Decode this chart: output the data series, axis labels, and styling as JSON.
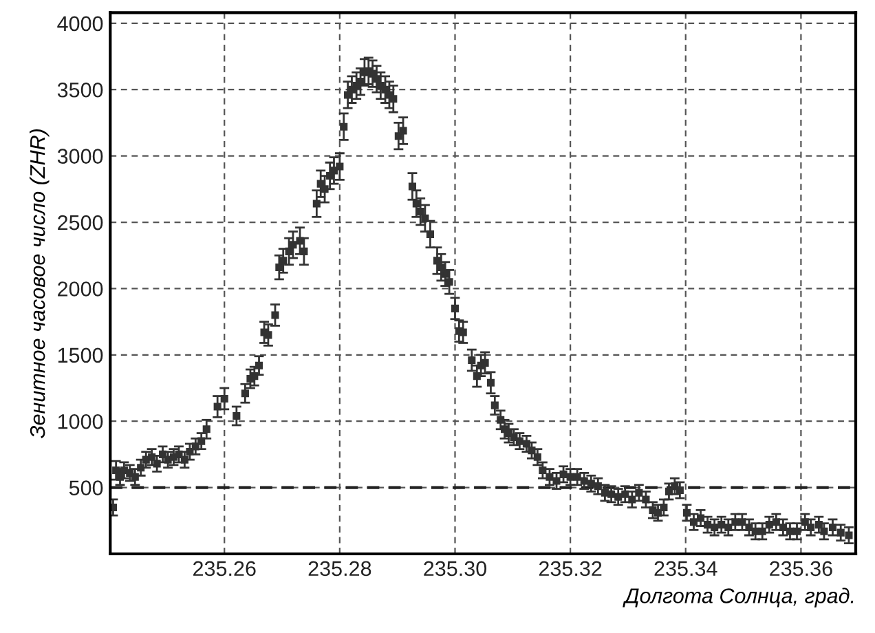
{
  "chart_data": {
    "type": "scatter",
    "xlabel": "Долгота Солнца, град.",
    "ylabel": "Зенитное часовое число (ZHR)",
    "xlim": [
      235.2402,
      235.3695
    ],
    "ylim": [
      0,
      4080
    ],
    "xticks": [
      {
        "value": 235.26,
        "label": "235.26"
      },
      {
        "value": 235.28,
        "label": "235.28"
      },
      {
        "value": 235.3,
        "label": "235.30"
      },
      {
        "value": 235.32,
        "label": "235.32"
      },
      {
        "value": 235.34,
        "label": "235.34"
      },
      {
        "value": 235.36,
        "label": "235.36"
      }
    ],
    "yticks": [
      500,
      1000,
      1500,
      2000,
      2500,
      3000,
      3500,
      4000
    ],
    "grid": true,
    "marker": "square",
    "ref_lines": [
      {
        "axis": "y",
        "value": 500,
        "color": "#222222",
        "line_style": "dashed"
      }
    ],
    "series": [
      {
        "color": "#333333",
        "x": [
          235.2407,
          235.2412,
          235.2419,
          235.2426,
          235.2436,
          235.2445,
          235.2455,
          235.2464,
          235.2474,
          235.2483,
          235.2493,
          235.2502,
          235.2512,
          235.2521,
          235.2531,
          235.254,
          235.255,
          235.256,
          235.2569,
          235.2588,
          235.26,
          235.2621,
          235.2636,
          235.2645,
          235.2652,
          235.266,
          235.2669,
          235.2676,
          235.2688,
          235.2695,
          235.2702,
          235.2712,
          235.2719,
          235.2731,
          235.2738,
          235.276,
          235.2767,
          235.2774,
          235.2783,
          235.279,
          235.28,
          235.2807,
          235.2814,
          235.2821,
          235.2829,
          235.2836,
          235.2843,
          235.285,
          235.2857,
          235.2864,
          235.2871,
          235.2879,
          235.2886,
          235.2893,
          235.2902,
          235.291,
          235.2926,
          235.2933,
          235.294,
          235.2948,
          235.2957,
          235.2969,
          235.2976,
          235.2983,
          235.299,
          235.3,
          235.3007,
          235.3014,
          235.3029,
          235.3038,
          235.3045,
          235.3052,
          235.3062,
          235.3069,
          235.3079,
          235.3086,
          235.3093,
          235.3102,
          235.3112,
          235.3124,
          235.3133,
          235.3143,
          235.3152,
          235.3164,
          235.3176,
          235.3188,
          235.32,
          235.3212,
          235.3224,
          235.3236,
          235.3248,
          235.326,
          235.3271,
          235.3283,
          235.3295,
          235.3307,
          235.3319,
          235.3331,
          235.3343,
          235.3352,
          235.3362,
          235.3371,
          235.3381,
          235.339,
          235.3402,
          235.3414,
          235.3426,
          235.3438,
          235.345,
          235.3462,
          235.3474,
          235.3486,
          235.3498,
          235.351,
          235.3521,
          235.3533,
          235.3545,
          235.3557,
          235.3569,
          235.3581,
          235.3593,
          235.3607,
          235.3617,
          235.3631,
          235.364,
          235.3655,
          235.3669,
          235.3683
        ],
        "values": [
          350,
          630,
          580,
          630,
          610,
          580,
          650,
          710,
          730,
          680,
          750,
          710,
          730,
          750,
          710,
          770,
          810,
          850,
          940,
          1110,
          1170,
          1040,
          1210,
          1320,
          1340,
          1420,
          1670,
          1650,
          1800,
          2160,
          2210,
          2280,
          2330,
          2360,
          2280,
          2640,
          2790,
          2750,
          2850,
          2890,
          2920,
          3220,
          3460,
          3500,
          3530,
          3560,
          3630,
          3640,
          3620,
          3580,
          3530,
          3500,
          3460,
          3430,
          3150,
          3190,
          2770,
          2640,
          2580,
          2530,
          2410,
          2210,
          2160,
          2110,
          2050,
          1850,
          1680,
          1670,
          1460,
          1340,
          1420,
          1440,
          1290,
          1120,
          1010,
          940,
          910,
          880,
          850,
          830,
          780,
          730,
          630,
          580,
          550,
          600,
          580,
          580,
          550,
          530,
          510,
          460,
          450,
          430,
          450,
          410,
          460,
          410,
          330,
          310,
          350,
          470,
          510,
          480,
          310,
          240,
          270,
          220,
          200,
          220,
          200,
          240,
          240,
          200,
          170,
          170,
          220,
          240,
          200,
          170,
          170,
          240,
          200,
          220,
          170,
          200,
          160,
          140
        ],
        "errors": [
          60,
          70,
          60,
          60,
          60,
          60,
          60,
          60,
          60,
          60,
          60,
          60,
          60,
          60,
          60,
          60,
          60,
          60,
          70,
          80,
          80,
          70,
          70,
          70,
          70,
          70,
          80,
          80,
          80,
          90,
          90,
          100,
          100,
          100,
          100,
          100,
          100,
          100,
          100,
          100,
          100,
          100,
          100,
          100,
          100,
          100,
          100,
          100,
          100,
          100,
          100,
          100,
          100,
          100,
          100,
          100,
          100,
          100,
          100,
          100,
          100,
          100,
          100,
          90,
          90,
          80,
          80,
          80,
          80,
          80,
          80,
          80,
          80,
          70,
          70,
          70,
          70,
          60,
          60,
          60,
          60,
          60,
          60,
          60,
          60,
          60,
          60,
          60,
          60,
          60,
          60,
          60,
          60,
          60,
          60,
          60,
          60,
          60,
          60,
          60,
          60,
          60,
          60,
          60,
          60,
          60,
          60,
          60,
          60,
          60,
          60,
          60,
          60,
          60,
          60,
          60,
          60,
          60,
          60,
          60,
          60,
          60,
          60,
          60,
          60,
          60,
          60,
          60
        ]
      }
    ]
  }
}
